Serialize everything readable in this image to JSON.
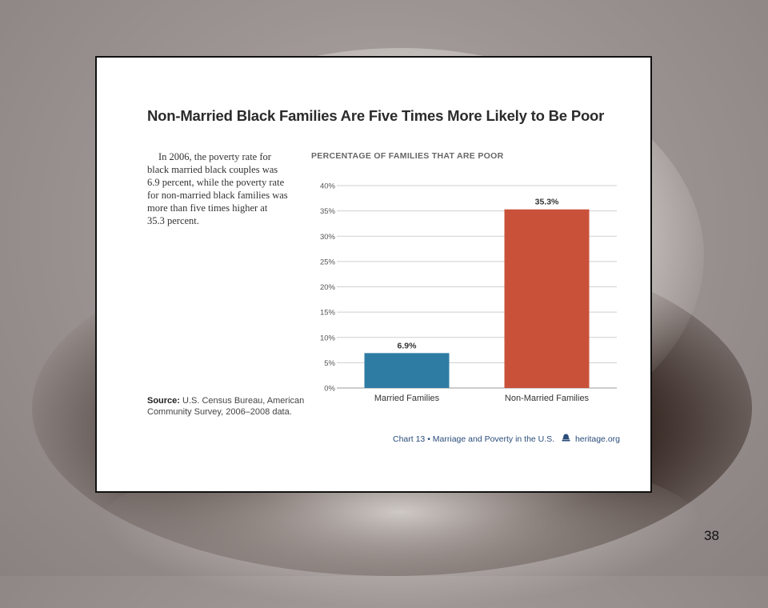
{
  "title": "Non-Married Black Families Are Five Times More Likely to Be Poor",
  "description_lines": [
    "In 2006, the poverty rate for",
    "black married black couples was",
    "6.9 percent, while the poverty rate",
    "for non-married black families was",
    "more than five times higher at",
    "35.3 percent."
  ],
  "source": {
    "label": "Source:",
    "line1": "U.S. Census Bureau, American",
    "line2": "Community Survey, 2006–2008 data."
  },
  "footer": {
    "chart_ref": "Chart 13 • Marriage and Poverty in the U.S.",
    "site": "heritage.org",
    "icon": "bell-icon"
  },
  "page_number": "38",
  "colors": {
    "married": "#2e7ca3",
    "non_married": "#c9513a"
  },
  "chart_data": {
    "type": "bar",
    "title": "PERCENTAGE OF FAMILIES THAT ARE POOR",
    "categories": [
      "Married Families",
      "Non-Married Families"
    ],
    "values": [
      6.9,
      35.3
    ],
    "data_labels": [
      "6.9%",
      "35.3%"
    ],
    "y_ticks": [
      "0%",
      "5%",
      "10%",
      "15%",
      "20%",
      "25%",
      "30%",
      "35%",
      "40%"
    ],
    "ylim": [
      0,
      40
    ],
    "grid": true,
    "legend": "none"
  }
}
